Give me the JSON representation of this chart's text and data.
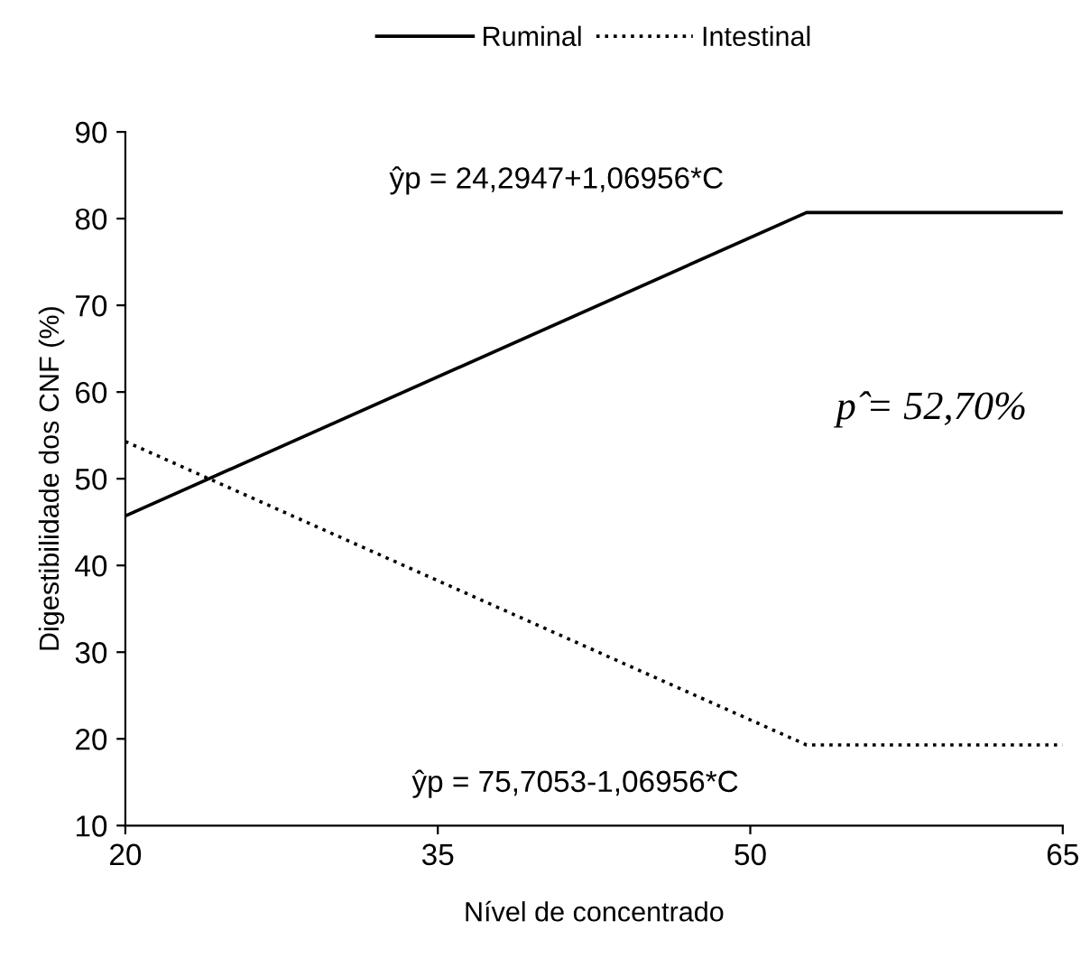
{
  "chart_data": {
    "type": "line",
    "xlabel": "Nível de concentrado",
    "ylabel": "Digestibilidade dos CNF (%)",
    "xlim": [
      20,
      65
    ],
    "xticks": [
      20,
      35,
      50,
      65
    ],
    "ylim": [
      10,
      90
    ],
    "yticks": [
      10,
      20,
      30,
      40,
      50,
      60,
      70,
      80,
      90
    ],
    "grid": false,
    "legend": "top",
    "marker": "none",
    "series": [
      {
        "name": "Ruminal",
        "color": "#000000",
        "line_style": "solid",
        "x": [
          20,
          52.7,
          65
        ],
        "values": [
          45.7,
          80.7,
          80.7
        ]
      },
      {
        "name": "Intestinal",
        "color": "#000000",
        "line_style": "dotted",
        "x": [
          20,
          52.7,
          65
        ],
        "values": [
          54.3,
          19.3,
          19.3
        ]
      }
    ],
    "annotations": [
      "ŷp = 24,2947+1,06956*C",
      "p̂ = 52,70%",
      "ŷp = 75,7053-1,06956*C"
    ]
  }
}
